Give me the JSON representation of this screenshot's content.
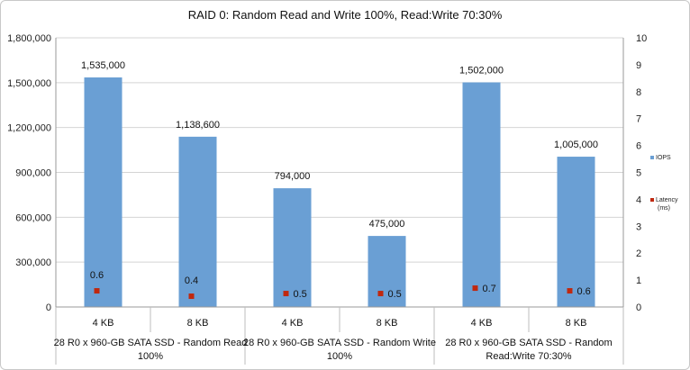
{
  "chart_data": {
    "type": "bar",
    "title": "RAID 0: Random Read and Write 100%, Read:Write 70:30%",
    "categories": [
      "4 KB",
      "8 KB",
      "4 KB",
      "8 KB",
      "4 KB",
      "8 KB"
    ],
    "groups": [
      {
        "label_lines": [
          "28 R0 x 960-GB SATA SSD - Random Read",
          "100%"
        ],
        "span": [
          0,
          1
        ]
      },
      {
        "label_lines": [
          "28 R0 x 960-GB SATA SSD - Random Write",
          "100%"
        ],
        "span": [
          2,
          3
        ]
      },
      {
        "label_lines": [
          "28 R0 x 960-GB SATA SSD - Random",
          "Read:Write 70:30%"
        ],
        "span": [
          4,
          5
        ]
      }
    ],
    "series": [
      {
        "name": "IOPS",
        "axis": "left",
        "kind": "bar",
        "color": "#6a9fd4",
        "values": [
          1535000,
          1138600,
          794000,
          475000,
          1502000,
          1005000
        ],
        "labels": [
          "1,535,000",
          "1,138,600",
          "794,000",
          "475,000",
          "1,502,000",
          "1,005,000"
        ]
      },
      {
        "name": "Latency (ms)",
        "legend_lines": [
          "Latency",
          "(ms)"
        ],
        "axis": "right",
        "kind": "marker",
        "color": "#c0280f",
        "values": [
          0.6,
          0.4,
          0.5,
          0.5,
          0.7,
          0.6
        ],
        "labels": [
          "0.6",
          "0.4",
          "0.5",
          "0.5",
          "0.7",
          "0.6"
        ]
      }
    ],
    "y_left": {
      "ylim": [
        0,
        1800000
      ],
      "ticks": [
        0,
        300000,
        600000,
        900000,
        1200000,
        1500000,
        1800000
      ],
      "tick_labels": [
        "0",
        "300,000",
        "600,000",
        "900,000",
        "1,200,000",
        "1,500,000",
        "1,800,000"
      ]
    },
    "y_right": {
      "ylim": [
        0,
        10
      ],
      "ticks": [
        0,
        1,
        2,
        3,
        4,
        5,
        6,
        7,
        8,
        9,
        10
      ],
      "tick_labels": [
        "0",
        "1",
        "2",
        "3",
        "4",
        "5",
        "6",
        "7",
        "8",
        "9",
        "10"
      ]
    },
    "grid": true,
    "legend_position": "right"
  }
}
